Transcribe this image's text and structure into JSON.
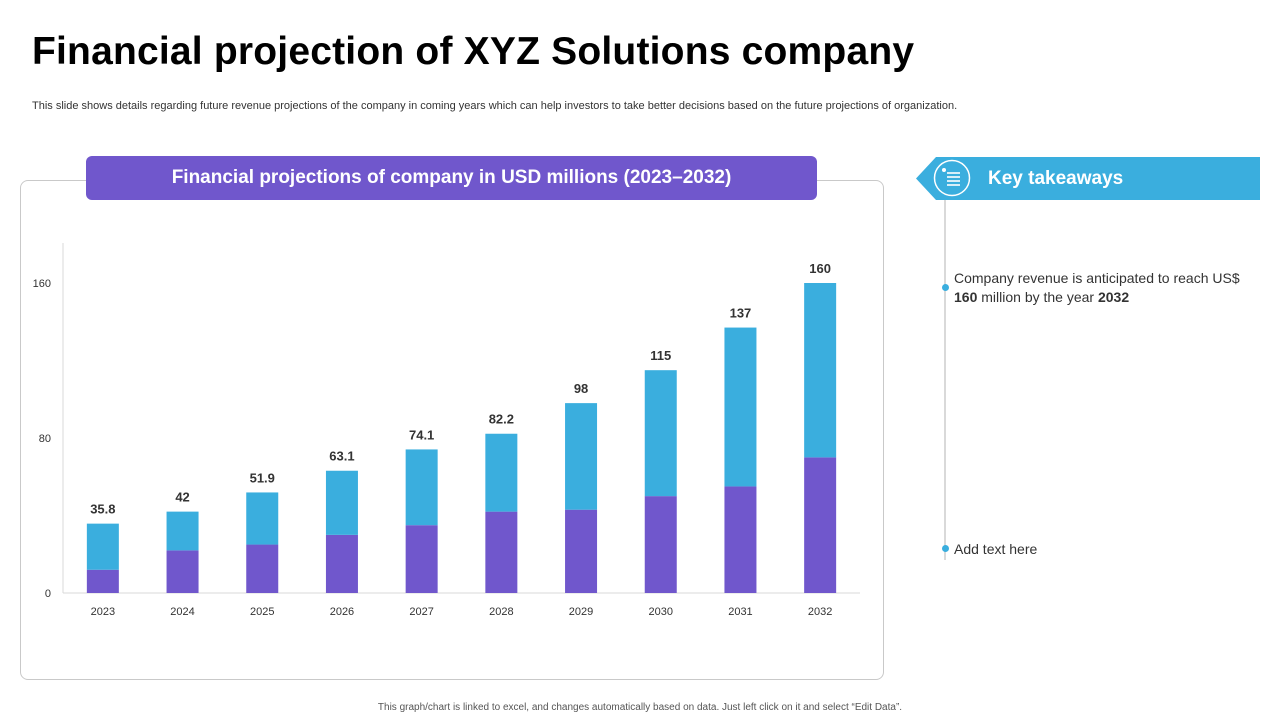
{
  "page": {
    "title": "Financial projection of XYZ Solutions company",
    "subtitle": "This slide shows details regarding future revenue projections of the company in coming years which can help investors to take better  decisions based on the future projections of organization.",
    "footer": "This graph/chart is linked to excel, and changes automatically based on data. Just left click on it and select “Edit Data”."
  },
  "chart_header": "Financial projections of company in USD millions (2023–2032)",
  "takeaways": {
    "title": "Key takeaways",
    "icon": "list-checklist-icon",
    "items": [
      {
        "pre": "Company revenue is anticipated to reach US$ ",
        "value": "160",
        "mid": " million by the year ",
        "year": "2032"
      },
      {
        "text": "Add text here"
      }
    ]
  },
  "colors": {
    "accent_purple": "#7057cc",
    "accent_blue": "#3aaede",
    "text": "#333333"
  },
  "chart_data": {
    "type": "bar",
    "stacked": true,
    "categories": [
      "2023",
      "2024",
      "2025",
      "2026",
      "2027",
      "2028",
      "2029",
      "2030",
      "2031",
      "2032"
    ],
    "series": [
      {
        "values": [
          12,
          22,
          25,
          30,
          35,
          42,
          43,
          50,
          55,
          70
        ],
        "color": "#7057cc"
      },
      {
        "values": [
          23.8,
          20,
          26.9,
          33.1,
          39.1,
          40.2,
          55,
          65,
          82,
          90
        ],
        "color": "#3aaede"
      }
    ],
    "totals": [
      "35.8",
      "42",
      "51.9",
      "63.1",
      "74.1",
      "82.2",
      "98",
      "115",
      "137",
      "160"
    ],
    "yticks": [
      0,
      80,
      160
    ],
    "ylim": [
      0,
      180
    ],
    "grid": false,
    "legend": "none"
  }
}
